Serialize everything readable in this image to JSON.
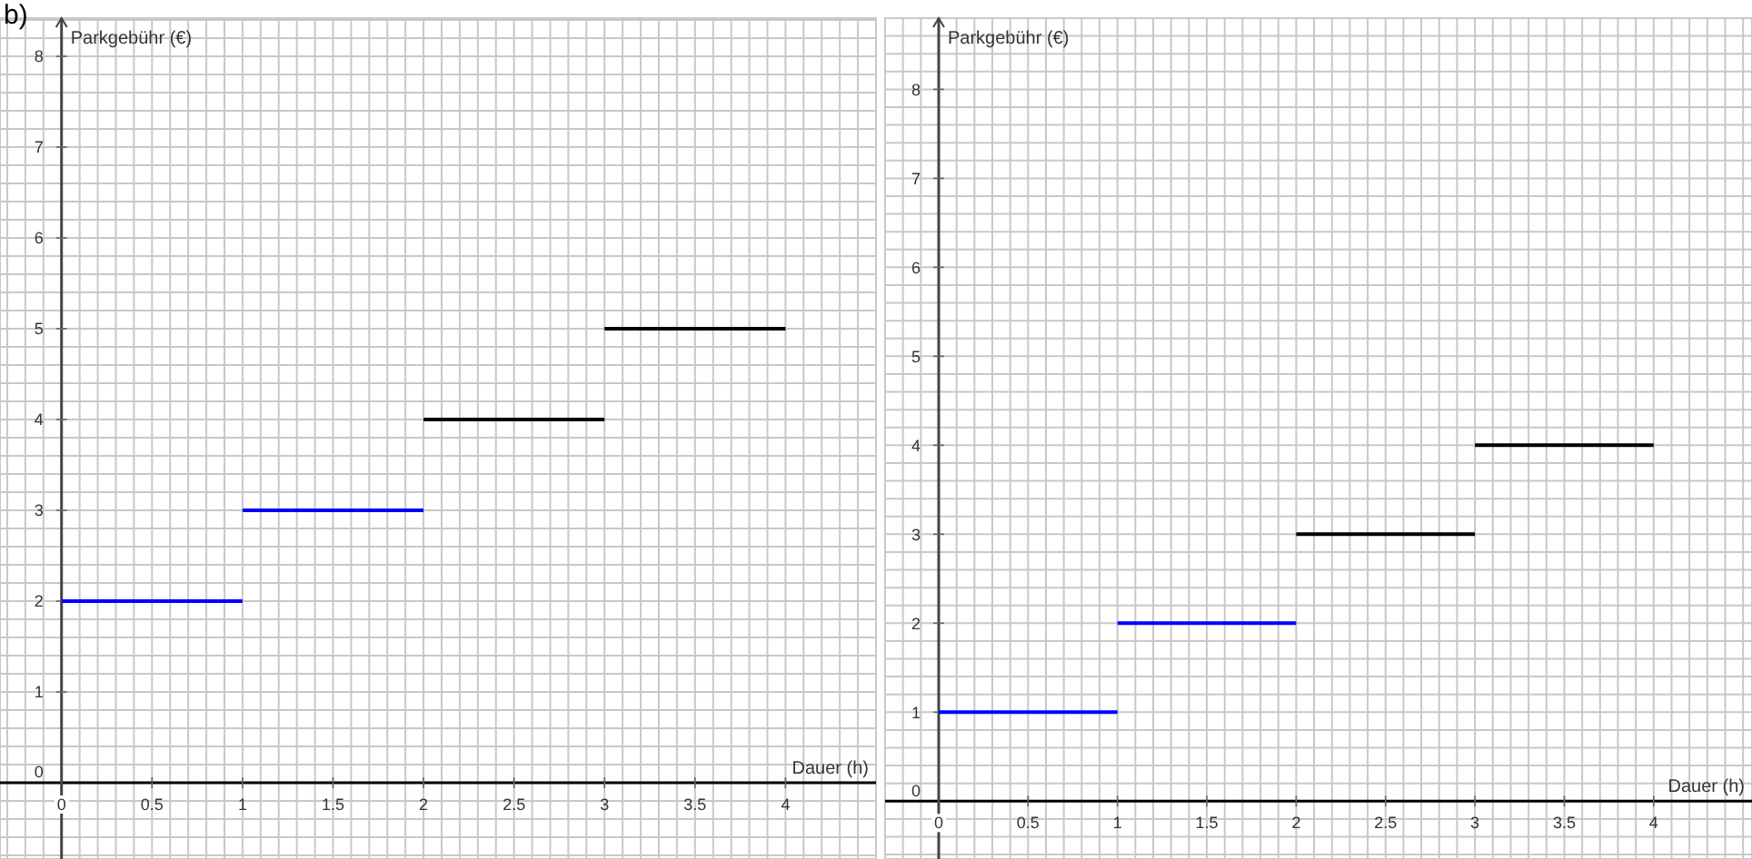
{
  "chart_data": [
    {
      "type": "line",
      "title": "b)",
      "xlabel": "Dauer (h)",
      "ylabel": "Parkgebühr (€)",
      "xlim": [
        -0.34,
        4.5
      ],
      "ylim": [
        -0.84,
        8.42
      ],
      "xticks": [
        0,
        0.5,
        1,
        1.5,
        2,
        2.5,
        3,
        3.5,
        4
      ],
      "yticks": [
        0,
        1,
        2,
        3,
        4,
        5,
        6,
        7,
        8
      ],
      "grid": true,
      "marker": "none",
      "line_style": "solid",
      "series": [
        {
          "color": "#0000ff",
          "x": [
            0,
            1
          ],
          "values": [
            2,
            2
          ]
        },
        {
          "color": "#0000ff",
          "x": [
            1,
            2
          ],
          "values": [
            3,
            3
          ]
        },
        {
          "color": "#000000",
          "x": [
            2,
            3
          ],
          "values": [
            4,
            4
          ]
        },
        {
          "color": "#000000",
          "x": [
            3,
            4
          ],
          "values": [
            5,
            5
          ]
        }
      ]
    },
    {
      "type": "line",
      "xlabel": "Dauer (h)",
      "ylabel": "Parkgebühr (€)",
      "xlim": [
        -0.3,
        4.55
      ],
      "ylim": [
        -0.65,
        8.8
      ],
      "xticks": [
        0,
        0.5,
        1,
        1.5,
        2,
        2.5,
        3,
        3.5,
        4
      ],
      "yticks": [
        0,
        1,
        2,
        3,
        4,
        5,
        6,
        7,
        8
      ],
      "grid": true,
      "marker": "none",
      "line_style": "solid",
      "series": [
        {
          "color": "#0000ff",
          "x": [
            0,
            1
          ],
          "values": [
            1,
            1
          ]
        },
        {
          "color": "#0000ff",
          "x": [
            1,
            2
          ],
          "values": [
            2,
            2
          ]
        },
        {
          "color": "#000000",
          "x": [
            2,
            3
          ],
          "values": [
            3,
            3
          ]
        },
        {
          "color": "#000000",
          "x": [
            3,
            4
          ],
          "values": [
            4,
            4
          ]
        }
      ]
    }
  ]
}
